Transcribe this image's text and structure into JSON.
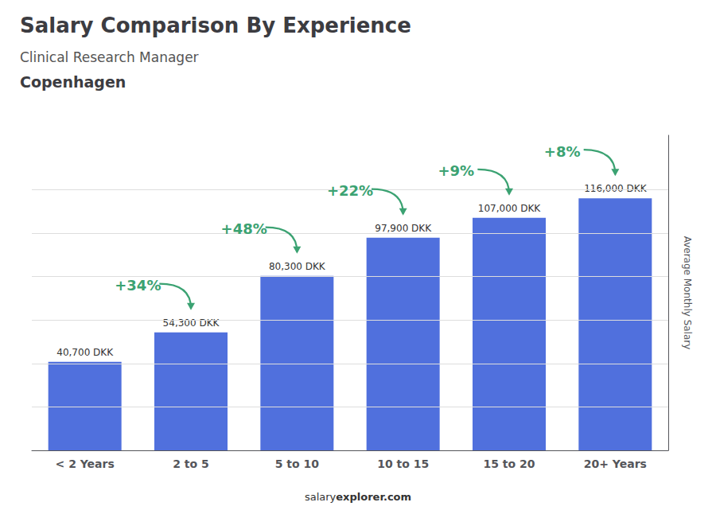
{
  "chart_data": {
    "type": "bar",
    "title": "Salary Comparison By Experience",
    "subtitle": "Clinical Research Manager",
    "city": "Copenhagen",
    "ylabel": "Average Monthly Salary",
    "source": [
      "salary",
      "explorer.com"
    ],
    "categories": [
      "< 2 Years",
      "2 to 5",
      "5 to 10",
      "10 to 15",
      "15 to 20",
      "20+ Years"
    ],
    "values": [
      40700,
      54300,
      80300,
      97900,
      107000,
      116000
    ],
    "value_labels": [
      "40,700 DKK",
      "54,300 DKK",
      "80,300 DKK",
      "97,900 DKK",
      "107,000 DKK",
      "116,000 DKK"
    ],
    "data_labels": true,
    "annotations": [
      "+34%",
      "+48%",
      "+22%",
      "+9%",
      "+8%"
    ],
    "ylim": [
      0,
      145000
    ],
    "yticks": [
      20000,
      40000,
      60000,
      80000,
      100000,
      120000
    ],
    "grid": true,
    "tick_labels": "x"
  }
}
